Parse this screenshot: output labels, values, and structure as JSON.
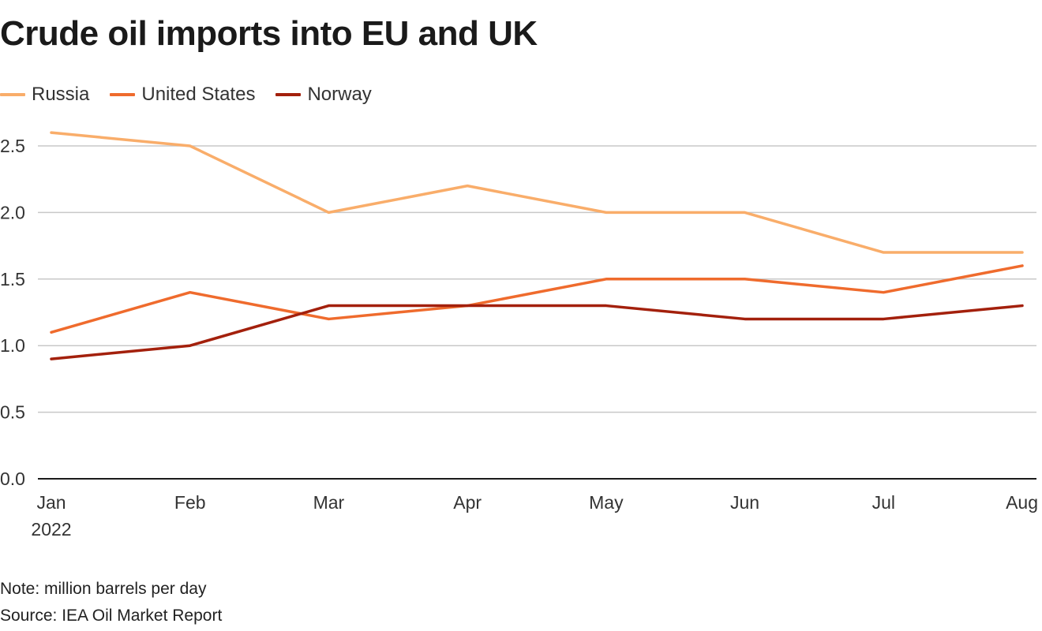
{
  "chart_data": {
    "type": "line",
    "title": "Crude oil imports into EU and UK",
    "categories": [
      "Jan",
      "Feb",
      "Mar",
      "Apr",
      "May",
      "Jun",
      "Jul",
      "Aug"
    ],
    "first_category_sublabel": "2022",
    "series": [
      {
        "name": "Russia",
        "color": "#f9ad6a",
        "values": [
          2.6,
          2.5,
          2.0,
          2.2,
          2.0,
          2.0,
          1.7,
          1.7
        ]
      },
      {
        "name": "United States",
        "color": "#ef6b2d",
        "values": [
          1.1,
          1.4,
          1.2,
          1.3,
          1.5,
          1.5,
          1.4,
          1.6
        ]
      },
      {
        "name": "Norway",
        "color": "#a3200c",
        "values": [
          0.9,
          1.0,
          1.3,
          1.3,
          1.3,
          1.2,
          1.2,
          1.3
        ]
      }
    ],
    "yticks": [
      "0.0",
      "0.5",
      "1.0",
      "1.5",
      "2.0",
      "2.5"
    ],
    "ylim": [
      0,
      2.65
    ],
    "grid": true,
    "legend_position": "top-left",
    "xlabel": "",
    "ylabel": ""
  },
  "notes": {
    "note": "Note: million barrels per day",
    "source": "Source: IEA Oil Market Report"
  }
}
